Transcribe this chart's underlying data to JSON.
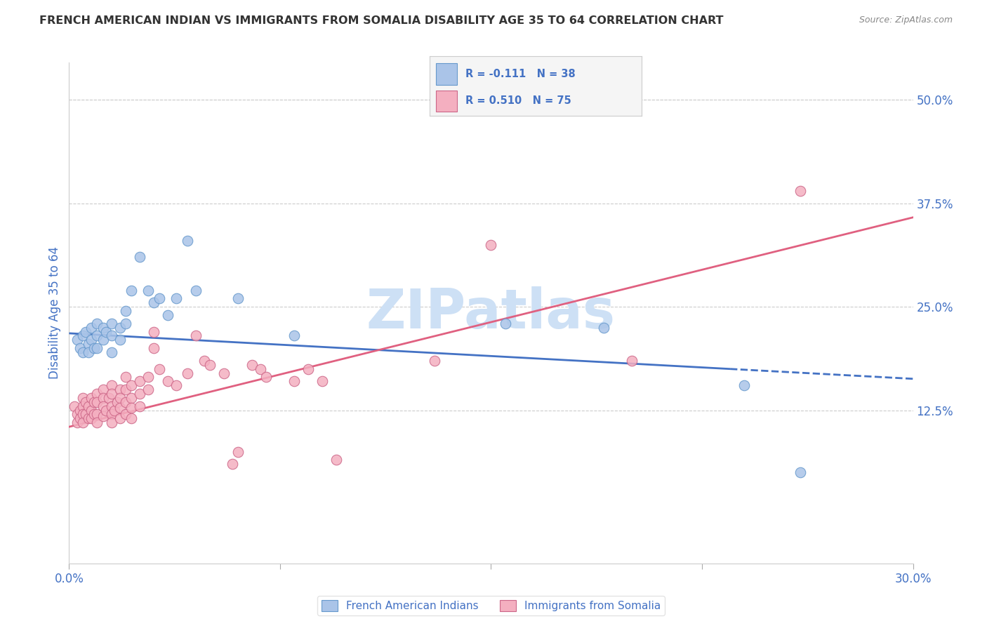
{
  "title": "FRENCH AMERICAN INDIAN VS IMMIGRANTS FROM SOMALIA DISABILITY AGE 35 TO 64 CORRELATION CHART",
  "source": "Source: ZipAtlas.com",
  "ylabel": "Disability Age 35 to 64",
  "ylabel_right_ticks": [
    "50.0%",
    "37.5%",
    "25.0%",
    "12.5%"
  ],
  "ylabel_right_vals": [
    0.5,
    0.375,
    0.25,
    0.125
  ],
  "xmin": 0.0,
  "xmax": 0.3,
  "ymin": -0.06,
  "ymax": 0.545,
  "color_blue_fill": "#aac4e8",
  "color_pink_fill": "#f4afc0",
  "color_blue_line": "#4472c4",
  "color_pink_line": "#e06080",
  "color_blue_edge": "#6699cc",
  "color_pink_edge": "#cc6688",
  "watermark_color": "#cde0f5",
  "grid_color": "#cccccc",
  "bg_color": "#ffffff",
  "text_color": "#333333",
  "axis_label_color": "#4472c4",
  "blue_scatter": [
    [
      0.003,
      0.21
    ],
    [
      0.004,
      0.2
    ],
    [
      0.005,
      0.215
    ],
    [
      0.005,
      0.195
    ],
    [
      0.006,
      0.22
    ],
    [
      0.007,
      0.205
    ],
    [
      0.007,
      0.195
    ],
    [
      0.008,
      0.225
    ],
    [
      0.008,
      0.21
    ],
    [
      0.009,
      0.2
    ],
    [
      0.01,
      0.23
    ],
    [
      0.01,
      0.215
    ],
    [
      0.01,
      0.2
    ],
    [
      0.012,
      0.225
    ],
    [
      0.012,
      0.21
    ],
    [
      0.013,
      0.22
    ],
    [
      0.015,
      0.23
    ],
    [
      0.015,
      0.215
    ],
    [
      0.015,
      0.195
    ],
    [
      0.018,
      0.225
    ],
    [
      0.018,
      0.21
    ],
    [
      0.02,
      0.245
    ],
    [
      0.02,
      0.23
    ],
    [
      0.022,
      0.27
    ],
    [
      0.025,
      0.31
    ],
    [
      0.028,
      0.27
    ],
    [
      0.03,
      0.255
    ],
    [
      0.032,
      0.26
    ],
    [
      0.035,
      0.24
    ],
    [
      0.038,
      0.26
    ],
    [
      0.042,
      0.33
    ],
    [
      0.045,
      0.27
    ],
    [
      0.06,
      0.26
    ],
    [
      0.08,
      0.215
    ],
    [
      0.155,
      0.23
    ],
    [
      0.19,
      0.225
    ],
    [
      0.24,
      0.155
    ],
    [
      0.26,
      0.05
    ]
  ],
  "pink_scatter": [
    [
      0.002,
      0.13
    ],
    [
      0.003,
      0.12
    ],
    [
      0.003,
      0.11
    ],
    [
      0.004,
      0.125
    ],
    [
      0.004,
      0.115
    ],
    [
      0.005,
      0.14
    ],
    [
      0.005,
      0.13
    ],
    [
      0.005,
      0.12
    ],
    [
      0.005,
      0.11
    ],
    [
      0.006,
      0.135
    ],
    [
      0.006,
      0.12
    ],
    [
      0.007,
      0.13
    ],
    [
      0.007,
      0.115
    ],
    [
      0.008,
      0.14
    ],
    [
      0.008,
      0.125
    ],
    [
      0.008,
      0.115
    ],
    [
      0.009,
      0.135
    ],
    [
      0.009,
      0.12
    ],
    [
      0.01,
      0.145
    ],
    [
      0.01,
      0.135
    ],
    [
      0.01,
      0.12
    ],
    [
      0.01,
      0.11
    ],
    [
      0.012,
      0.15
    ],
    [
      0.012,
      0.14
    ],
    [
      0.012,
      0.13
    ],
    [
      0.012,
      0.118
    ],
    [
      0.013,
      0.125
    ],
    [
      0.014,
      0.14
    ],
    [
      0.015,
      0.155
    ],
    [
      0.015,
      0.145
    ],
    [
      0.015,
      0.13
    ],
    [
      0.015,
      0.12
    ],
    [
      0.015,
      0.11
    ],
    [
      0.016,
      0.125
    ],
    [
      0.017,
      0.135
    ],
    [
      0.018,
      0.15
    ],
    [
      0.018,
      0.14
    ],
    [
      0.018,
      0.128
    ],
    [
      0.018,
      0.115
    ],
    [
      0.02,
      0.165
    ],
    [
      0.02,
      0.15
    ],
    [
      0.02,
      0.135
    ],
    [
      0.02,
      0.12
    ],
    [
      0.022,
      0.155
    ],
    [
      0.022,
      0.14
    ],
    [
      0.022,
      0.128
    ],
    [
      0.022,
      0.115
    ],
    [
      0.025,
      0.16
    ],
    [
      0.025,
      0.145
    ],
    [
      0.025,
      0.13
    ],
    [
      0.028,
      0.165
    ],
    [
      0.028,
      0.15
    ],
    [
      0.03,
      0.22
    ],
    [
      0.03,
      0.2
    ],
    [
      0.032,
      0.175
    ],
    [
      0.035,
      0.16
    ],
    [
      0.038,
      0.155
    ],
    [
      0.042,
      0.17
    ],
    [
      0.045,
      0.215
    ],
    [
      0.048,
      0.185
    ],
    [
      0.05,
      0.18
    ],
    [
      0.055,
      0.17
    ],
    [
      0.058,
      0.06
    ],
    [
      0.06,
      0.075
    ],
    [
      0.065,
      0.18
    ],
    [
      0.068,
      0.175
    ],
    [
      0.07,
      0.165
    ],
    [
      0.08,
      0.16
    ],
    [
      0.085,
      0.175
    ],
    [
      0.09,
      0.16
    ],
    [
      0.095,
      0.065
    ],
    [
      0.13,
      0.185
    ],
    [
      0.15,
      0.325
    ],
    [
      0.2,
      0.185
    ],
    [
      0.26,
      0.39
    ]
  ],
  "blue_line": [
    [
      0.0,
      0.218
    ],
    [
      0.3,
      0.163
    ]
  ],
  "blue_line_dash_start_x": 0.235,
  "pink_line": [
    [
      0.0,
      0.105
    ],
    [
      0.3,
      0.358
    ]
  ],
  "legend_items": [
    {
      "color_fill": "#aac4e8",
      "color_edge": "#6699cc",
      "r_text": "R = -0.111",
      "n_text": "N = 38"
    },
    {
      "color_fill": "#f4afc0",
      "color_edge": "#cc6688",
      "r_text": "R = 0.510",
      "n_text": "N = 75"
    }
  ],
  "bottom_legend": [
    "French American Indians",
    "Immigrants from Somalia"
  ]
}
